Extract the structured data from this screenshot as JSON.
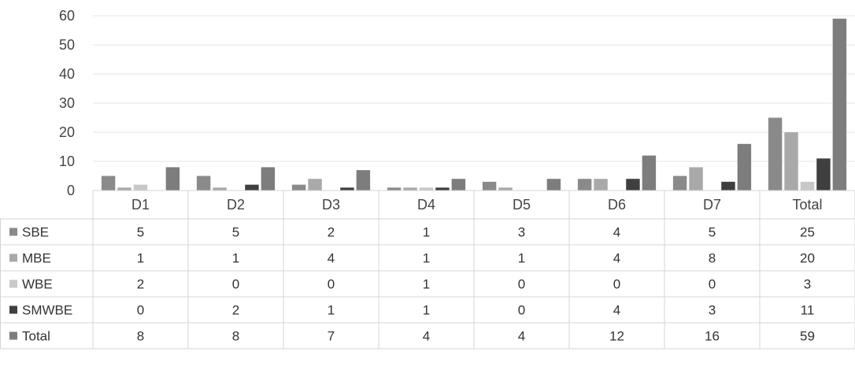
{
  "chart_data": {
    "type": "bar",
    "categories": [
      "D1",
      "D2",
      "D3",
      "D4",
      "D5",
      "D6",
      "D7",
      "Total"
    ],
    "series": [
      {
        "name": "SBE",
        "values": [
          5,
          5,
          2,
          1,
          3,
          4,
          5,
          25
        ],
        "color": "#8a8a8a"
      },
      {
        "name": "MBE",
        "values": [
          1,
          1,
          4,
          1,
          1,
          4,
          8,
          20
        ],
        "color": "#a9a9a9"
      },
      {
        "name": "WBE",
        "values": [
          2,
          0,
          0,
          1,
          0,
          0,
          0,
          3
        ],
        "color": "#c8c8c8"
      },
      {
        "name": "SMWBE",
        "values": [
          0,
          2,
          1,
          1,
          0,
          4,
          3,
          11
        ],
        "color": "#3f3f3f"
      },
      {
        "name": "Total",
        "values": [
          8,
          8,
          7,
          4,
          4,
          12,
          16,
          59
        ],
        "color": "#7d7d7d"
      }
    ],
    "y_ticks": [
      "0",
      "10",
      "20",
      "30",
      "40",
      "50",
      "60"
    ],
    "ylim": [
      0,
      60
    ],
    "grid": true,
    "legend": "data-table"
  }
}
